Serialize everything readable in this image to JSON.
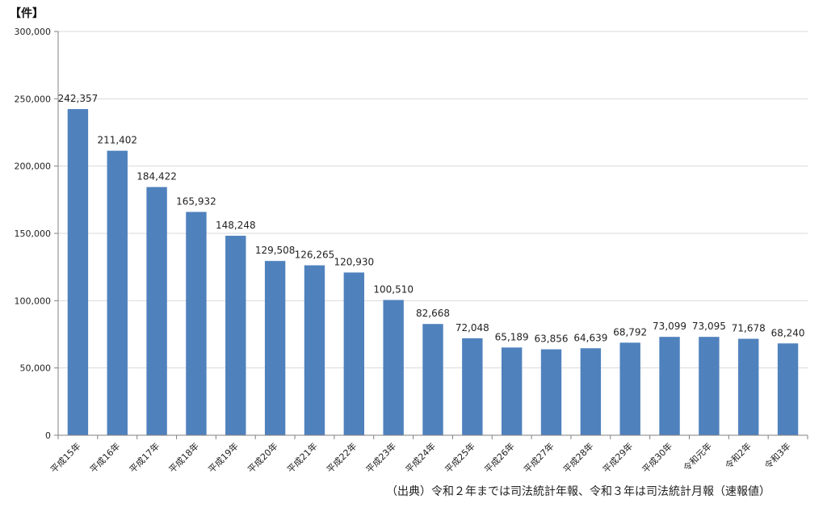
{
  "chart_data": {
    "type": "bar",
    "unit_label": "【件】",
    "categories": [
      "平成15年",
      "平成16年",
      "平成17年",
      "平成18年",
      "平成19年",
      "平成20年",
      "平成21年",
      "平成22年",
      "平成23年",
      "平成24年",
      "平成25年",
      "平成26年",
      "平成27年",
      "平成28年",
      "平成29年",
      "平成30年",
      "令和元年",
      "令和2年",
      "令和3年"
    ],
    "values": [
      242357,
      211402,
      184422,
      165932,
      148248,
      129508,
      126265,
      120930,
      100510,
      82668,
      72048,
      65189,
      63856,
      64639,
      68792,
      73099,
      73095,
      71678,
      68240
    ],
    "value_labels": [
      "242,357",
      "211,402",
      "184,422",
      "165,932",
      "148,248",
      "129,508",
      "126,265",
      "120,930",
      "100,510",
      "82,668",
      "72,048",
      "65,189",
      "63,856",
      "64,639",
      "68,792",
      "73,099",
      "73,095",
      "71,678",
      "68,240"
    ],
    "ylim": [
      0,
      300000
    ],
    "yticks": [
      0,
      50000,
      100000,
      150000,
      200000,
      250000,
      300000
    ],
    "ytick_labels": [
      "0",
      "50,000",
      "100,000",
      "150,000",
      "200,000",
      "250,000",
      "300,000"
    ],
    "grid": true,
    "bar_color": "#4f81bd",
    "source_note": "（出典）令和２年までは司法統計年報、令和３年は司法統計月報（速報値）"
  }
}
